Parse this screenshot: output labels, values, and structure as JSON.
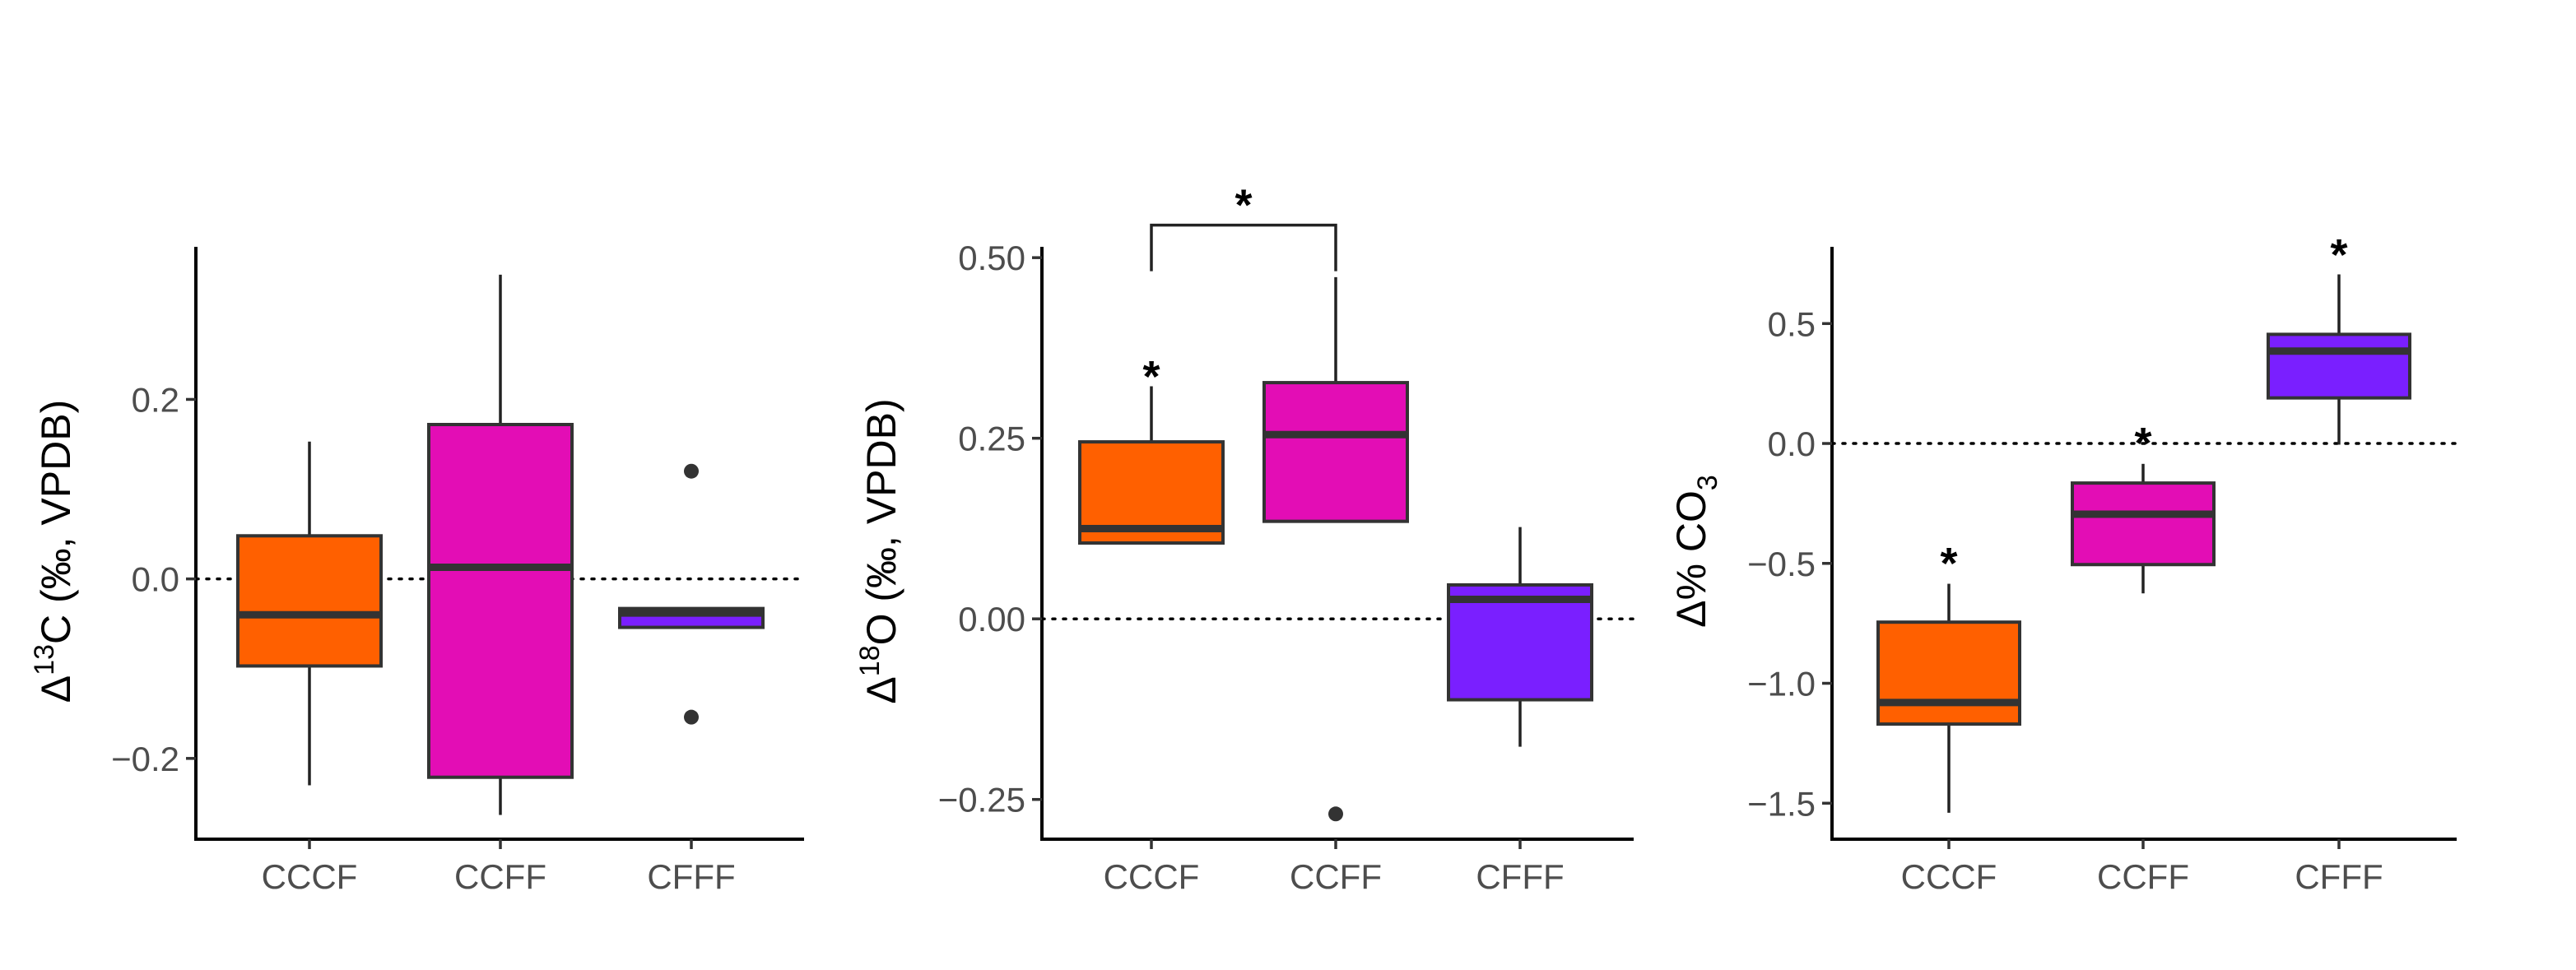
{
  "chart_data": [
    {
      "type": "box",
      "ylabel": {
        "prefix": "Δ",
        "sup": "13",
        "suffix": "C (‰, VPDB)"
      },
      "categories": [
        "CCCF",
        "CCFF",
        "CFFF"
      ],
      "ylim": [
        -0.29,
        0.37
      ],
      "yticks": [
        {
          "value": 0.2,
          "label": "0.2"
        },
        {
          "value": 0.0,
          "label": "0.0"
        },
        {
          "value": -0.2,
          "label": "−0.2"
        }
      ],
      "reference_line": 0,
      "boxes": [
        {
          "category": "CCCF",
          "color": "#FF6000",
          "whisker_low": -0.23,
          "q1": -0.097,
          "median": -0.04,
          "q3": 0.048,
          "whisker_high": 0.153,
          "outliers": []
        },
        {
          "category": "CCFF",
          "color": "#E30DB5",
          "whisker_low": -0.263,
          "q1": -0.221,
          "median": 0.013,
          "q3": 0.172,
          "whisker_high": 0.339,
          "outliers": []
        },
        {
          "category": "CFFF",
          "color": "#7A1FFF",
          "whisker_low": -0.054,
          "q1": -0.054,
          "median": -0.038,
          "q3": -0.033,
          "whisker_high": -0.033,
          "outliers": [
            0.12,
            -0.154
          ]
        }
      ],
      "significance": []
    },
    {
      "type": "box",
      "ylabel": {
        "prefix": "Δ",
        "sup": "18",
        "suffix": "O (‰, VPDB)"
      },
      "categories": [
        "CCCF",
        "CCFF",
        "CFFF"
      ],
      "ylim": [
        -0.305,
        0.515
      ],
      "yticks": [
        {
          "value": 0.5,
          "label": "0.50"
        },
        {
          "value": 0.25,
          "label": "0.25"
        },
        {
          "value": 0.0,
          "label": "0.00"
        },
        {
          "value": -0.25,
          "label": "−0.25"
        }
      ],
      "reference_line": 0,
      "boxes": [
        {
          "category": "CCCF",
          "color": "#FF6000",
          "whisker_low": 0.105,
          "q1": 0.105,
          "median": 0.125,
          "q3": 0.245,
          "whisker_high": 0.322,
          "outliers": []
        },
        {
          "category": "CCFF",
          "color": "#E30DB5",
          "whisker_low": 0.135,
          "q1": 0.135,
          "median": 0.255,
          "q3": 0.327,
          "whisker_high": 0.473,
          "outliers": [
            -0.27
          ]
        },
        {
          "category": "CFFF",
          "color": "#7A1FFF",
          "whisker_low": -0.177,
          "q1": -0.112,
          "median": 0.027,
          "q3": 0.047,
          "whisker_high": 0.127,
          "outliers": []
        }
      ],
      "significance": [
        {
          "category": "CCCF",
          "y": 0.335,
          "label": "*"
        },
        {
          "bracket": [
            "CCCF",
            "CCFF"
          ],
          "y": 0.545,
          "label": "*"
        }
      ]
    },
    {
      "type": "box",
      "ylabel": {
        "prefix": "Δ% CO",
        "sub": "3"
      },
      "categories": [
        "CCCF",
        "CCFF",
        "CFFF"
      ],
      "ylim": [
        -1.65,
        0.82
      ],
      "yticks": [
        {
          "value": 0.5,
          "label": "0.5"
        },
        {
          "value": 0.0,
          "label": "0.0"
        },
        {
          "value": -0.5,
          "label": "−0.5"
        },
        {
          "value": -1.0,
          "label": "−1.0"
        },
        {
          "value": -1.5,
          "label": "−1.5"
        }
      ],
      "reference_line": 0,
      "boxes": [
        {
          "category": "CCCF",
          "color": "#FF6000",
          "whisker_low": -1.54,
          "q1": -1.17,
          "median": -1.08,
          "q3": -0.745,
          "whisker_high": -0.585,
          "outliers": []
        },
        {
          "category": "CCFF",
          "color": "#E30DB5",
          "whisker_low": -0.625,
          "q1": -0.505,
          "median": -0.295,
          "q3": -0.165,
          "whisker_high": -0.085,
          "outliers": []
        },
        {
          "category": "CFFF",
          "color": "#7A1FFF",
          "whisker_low": -0.005,
          "q1": 0.19,
          "median": 0.385,
          "q3": 0.455,
          "whisker_high": 0.705,
          "outliers": []
        }
      ],
      "significance": [
        {
          "category": "CCCF",
          "y": -0.5,
          "label": "*"
        },
        {
          "category": "CCFF",
          "y": 0.0,
          "label": "*"
        },
        {
          "category": "CFFF",
          "y": 0.785,
          "label": "*"
        }
      ]
    }
  ]
}
